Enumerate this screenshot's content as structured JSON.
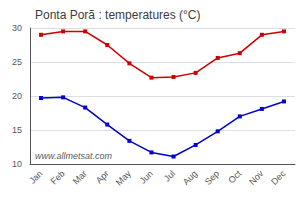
{
  "chart_data": {
    "type": "line",
    "title": "Ponta Porã : temperatures (°C)",
    "categories": [
      "Jan",
      "Feb",
      "Mar",
      "Apr",
      "May",
      "Jun",
      "Jul",
      "Aug",
      "Sep",
      "Oct",
      "Nov",
      "Dec"
    ],
    "series": [
      {
        "color": "#cc0000",
        "values": [
          29.0,
          29.5,
          29.5,
          27.5,
          24.8,
          22.7,
          22.8,
          23.4,
          25.6,
          26.3,
          29.0,
          29.5
        ]
      },
      {
        "color": "#0000cc",
        "values": [
          19.7,
          19.8,
          18.3,
          15.8,
          13.4,
          11.7,
          11.1,
          12.8,
          14.8,
          17.0,
          18.1,
          19.2
        ]
      }
    ],
    "ylim": [
      10,
      30
    ],
    "yticks": [
      10,
      15,
      20,
      25,
      30
    ],
    "grid": true,
    "marker": "square",
    "annotations": [
      "www.allmetsat.com"
    ]
  }
}
